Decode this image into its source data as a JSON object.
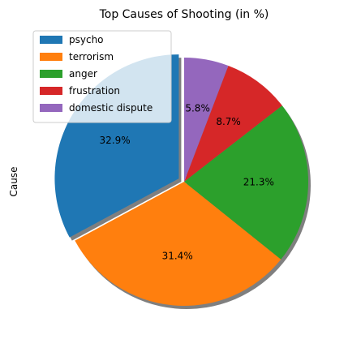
{
  "chart_data": {
    "type": "pie",
    "title": "Top Causes of Shooting (in %)",
    "ylabel": "Cause",
    "labels": [
      "psycho",
      "terrorism",
      "anger",
      "frustration",
      "domestic dispute"
    ],
    "values": [
      32.9,
      31.4,
      21.3,
      8.7,
      5.8
    ],
    "value_labels": [
      "32.9%",
      "31.4%",
      "21.3%",
      "8.7%",
      "5.8%"
    ],
    "colors": [
      "#1f77b4",
      "#ff7f0e",
      "#2ca02c",
      "#d62728",
      "#9467bd"
    ],
    "start_angle_deg": 90,
    "direction": "counterclockwise",
    "explode": [
      0.05,
      0,
      0,
      0,
      0
    ],
    "shadow": true,
    "legend_position": "top-left"
  }
}
